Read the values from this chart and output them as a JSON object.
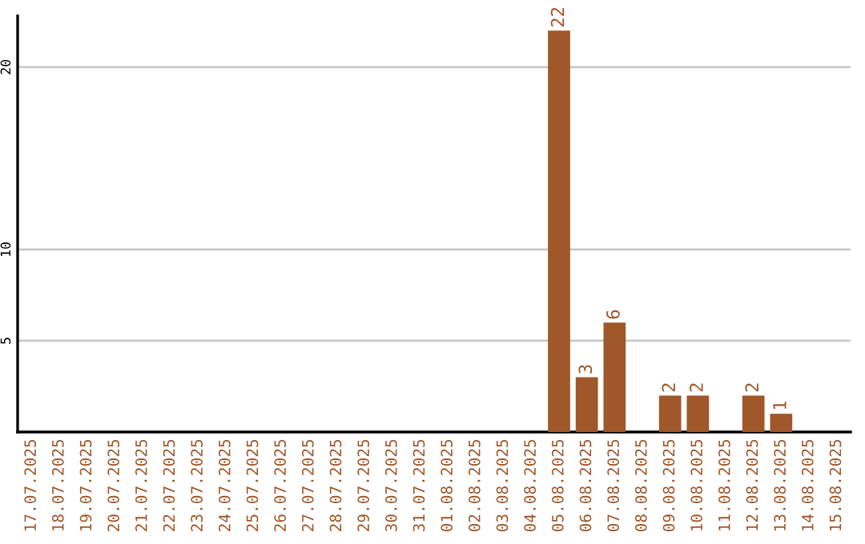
{
  "chart_data": {
    "type": "bar",
    "categories": [
      "17.07.2025",
      "18.07.2025",
      "19.07.2025",
      "20.07.2025",
      "21.07.2025",
      "22.07.2025",
      "23.07.2025",
      "24.07.2025",
      "25.07.2025",
      "26.07.2025",
      "27.07.2025",
      "28.07.2025",
      "29.07.2025",
      "30.07.2025",
      "31.07.2025",
      "01.08.2025",
      "02.08.2025",
      "03.08.2025",
      "04.08.2025",
      "05.08.2025",
      "06.08.2025",
      "07.08.2025",
      "08.08.2025",
      "09.08.2025",
      "10.08.2025",
      "11.08.2025",
      "12.08.2025",
      "13.08.2025",
      "14.08.2025",
      "15.08.2025"
    ],
    "values": [
      null,
      null,
      null,
      null,
      null,
      null,
      null,
      null,
      null,
      null,
      null,
      null,
      null,
      null,
      null,
      null,
      null,
      null,
      null,
      22,
      3,
      6,
      null,
      2,
      2,
      null,
      2,
      1,
      null,
      null
    ],
    "color": "#a0572a",
    "ylim": [
      0,
      22.8
    ],
    "yticks": [
      5,
      10,
      20
    ],
    "grid": "y",
    "data_labels": true
  }
}
